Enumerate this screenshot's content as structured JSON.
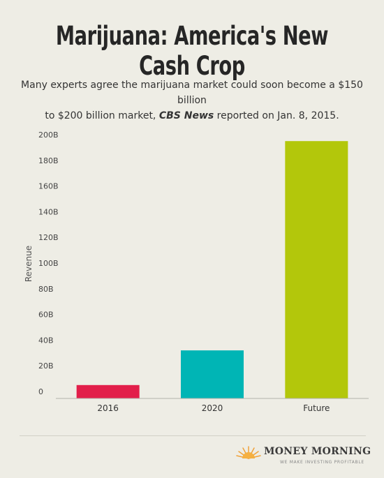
{
  "title": "Marijuana: America's New Cash Crop",
  "subtitle": {
    "line1": "Many experts agree the marijuana market could soon become a $150 billion",
    "line2_pre": "to $200 billion market, ",
    "source": "CBS News",
    "line2_post": " reported on Jan. 8, 2015."
  },
  "chart_data": {
    "type": "bar",
    "categories": [
      "2016",
      "2020",
      "Future"
    ],
    "values": [
      5,
      32,
      195
    ],
    "colors": [
      "#e21f4a",
      "#00b5b5",
      "#b3c70b"
    ],
    "ylabel": "Revenue",
    "xlabel": "",
    "ylim": [
      0,
      200
    ],
    "yticks": [
      "0",
      "20B",
      "40B",
      "60B",
      "80B",
      "100B",
      "120B",
      "140B",
      "160B",
      "180B",
      "200B"
    ],
    "grid": false
  },
  "footer": {
    "brand": "MONEY MORNING",
    "tagline": "WE MAKE INVESTING PROFITABLE",
    "logo_icon": "rising-sun-icon"
  }
}
